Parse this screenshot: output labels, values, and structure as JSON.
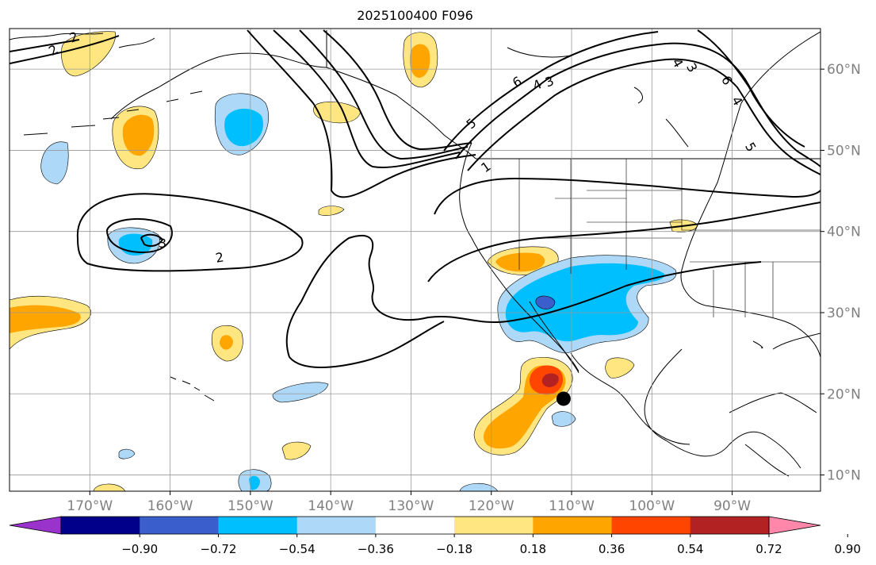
{
  "title": "2025100400 F096",
  "map": {
    "lon_range": [
      -180,
      -79
    ],
    "lat_range": [
      8,
      65
    ],
    "gridlines": true,
    "grid_color": "#999999",
    "lon_ticks": [
      "170°W",
      "160°W",
      "150°W",
      "140°W",
      "130°W",
      "120°W",
      "110°W",
      "100°W",
      "90°W"
    ],
    "lat_ticks": [
      "10°N",
      "20°N",
      "30°N",
      "40°N",
      "50°N",
      "60°N"
    ],
    "tick_label_color": "#808080",
    "contour_labels": [
      "2",
      "2",
      "3",
      "6",
      "4",
      "3",
      "5",
      "1",
      "4",
      "3",
      "6",
      "5",
      "4",
      "2"
    ],
    "marker": {
      "type": "black-dot",
      "lon": -111,
      "lat": 19
    }
  },
  "colorbar": {
    "orientation": "horizontal",
    "extend": "both",
    "labels": [
      "−0.90",
      "−0.72",
      "−0.54",
      "−0.36",
      "−0.18",
      "0.18",
      "0.36",
      "0.54",
      "0.72",
      "0.90"
    ],
    "colors": [
      "#9933cc",
      "#00008b",
      "#3a5fcd",
      "#00bfff",
      "#add8f7",
      "#ffffff",
      "#ffe680",
      "#ffa500",
      "#ff4500",
      "#b22222",
      "#ff88aa"
    ]
  }
}
